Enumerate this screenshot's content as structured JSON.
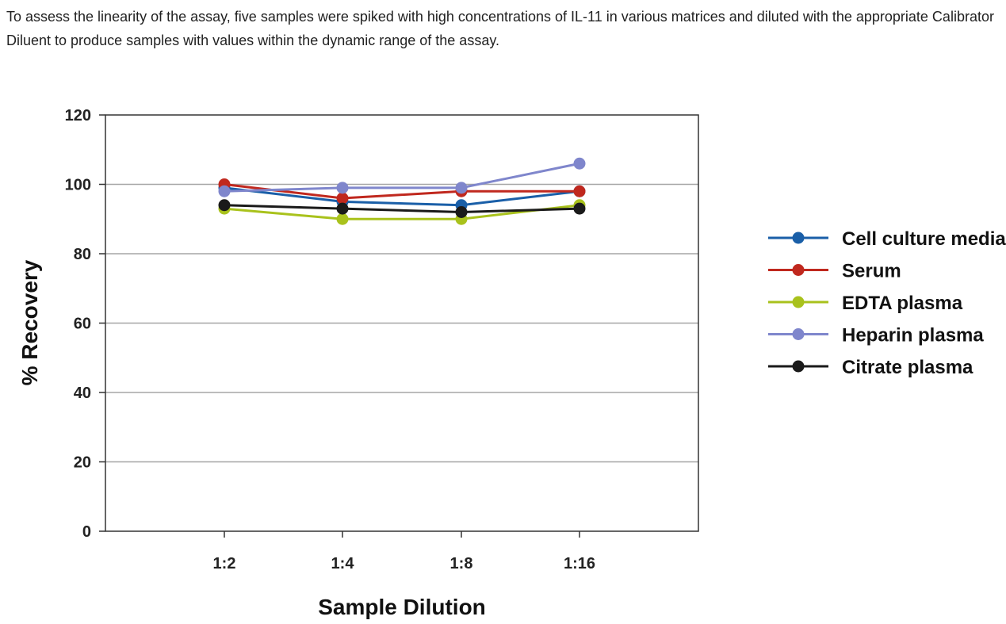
{
  "intro_text": "To assess the linearity of the assay, five samples were spiked with high concentrations of IL-11 in various matrices and diluted with the appropriate Calibrator Diluent to produce samples with values within the dynamic range of the assay.",
  "chart_data": {
    "type": "line",
    "title": "",
    "xlabel": "Sample Dilution",
    "ylabel": "% Recovery",
    "categories": [
      "1:2",
      "1:4",
      "1:8",
      "1:16"
    ],
    "ylim": [
      0,
      120
    ],
    "yticks": [
      0,
      20,
      40,
      60,
      80,
      100,
      120
    ],
    "grid": true,
    "legend_position": "right",
    "series": [
      {
        "name": "Cell culture media",
        "color": "#1a5fa8",
        "values": [
          99,
          95,
          94,
          98
        ]
      },
      {
        "name": "Serum",
        "color": "#c0281e",
        "values": [
          100,
          96,
          98,
          98
        ]
      },
      {
        "name": "EDTA plasma",
        "color": "#a9c21c",
        "values": [
          93,
          90,
          90,
          94
        ]
      },
      {
        "name": "Heparin plasma",
        "color": "#7f86cc",
        "values": [
          98,
          99,
          99,
          106
        ]
      },
      {
        "name": "Citrate plasma",
        "color": "#1a1a1a",
        "values": [
          94,
          93,
          92,
          93
        ]
      }
    ]
  }
}
